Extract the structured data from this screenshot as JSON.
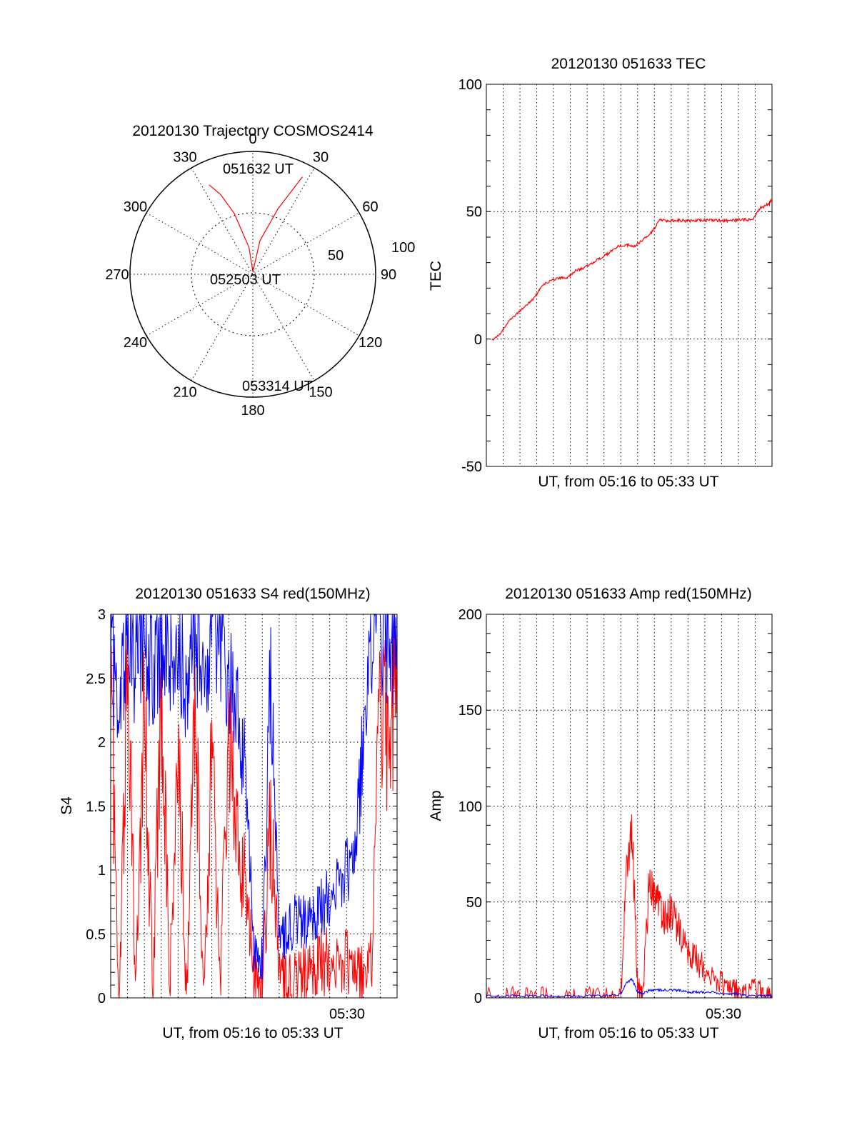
{
  "colors": {
    "red": "#ff0000",
    "blue": "#0000ff",
    "axis": "#000000"
  },
  "polar": {
    "title": "20120130 Trajectory COSMOS2414",
    "type": "polar",
    "azimuth_labels": [
      "0",
      "30",
      "60",
      "90",
      "120",
      "150",
      "180",
      "210",
      "240",
      "270",
      "300",
      "330"
    ],
    "radius_labels": [
      "50",
      "100"
    ],
    "radial_max": 100,
    "marker_start": "051632 UT",
    "marker_center": "052503 UT",
    "marker_end": "053314 UT"
  },
  "tec": {
    "title": "20120130 051633 TEC",
    "xlabel": "UT, from 05:16 to 05:33 UT",
    "ylabel": "TEC",
    "ytick_labels": [
      "100",
      "50",
      "0",
      "-50"
    ],
    "xtick_labels": []
  },
  "s4": {
    "title": "20120130 051633 S4 red(150MHz)",
    "xlabel": "UT, from 05:16 to 05:33 UT",
    "ylabel": "S4",
    "ytick_labels": [
      "3",
      "2.5",
      "2",
      "1.5",
      "1",
      "0.5",
      "0"
    ],
    "xtick_labels": [
      "05:30"
    ]
  },
  "amp": {
    "title": "20120130 051633 Amp red(150MHz)",
    "xlabel": "UT, from 05:16 to 05:33 UT",
    "ylabel": "Amp",
    "ytick_labels": [
      "200",
      "150",
      "100",
      "50",
      "0"
    ],
    "xtick_labels": [
      "05:30"
    ]
  },
  "chart_data": [
    {
      "type": "line",
      "chart": "polar-trajectory",
      "title": "20120130 Trajectory COSMOS2414",
      "series": [
        {
          "az": [
            334,
            338,
            343,
            352,
            2,
            12,
            21,
            27
          ],
          "r": [
            81,
            70,
            52,
            22,
            2,
            28,
            57,
            89
          ]
        }
      ]
    },
    {
      "type": "line",
      "chart": "tec",
      "title": "20120130 051633 TEC",
      "xlabel": "UT, from 05:16 to 05:33 UT",
      "ylabel": "TEC",
      "ylim": [
        -50,
        100
      ],
      "xlim": [
        "05:16",
        "05:33"
      ],
      "series": [
        {
          "x": [
            "05:16:20",
            "05:16:50",
            "05:17:20",
            "05:17:50",
            "05:18:20",
            "05:18:50",
            "05:19:20",
            "05:19:50",
            "05:20:20",
            "05:20:50",
            "05:21:20",
            "05:21:50",
            "05:22:20",
            "05:22:50",
            "05:23:20",
            "05:23:50",
            "05:24:20",
            "05:24:50",
            "05:25:20",
            "05:25:50",
            "05:26:20",
            "05:26:50",
            "05:27:20",
            "05:27:50",
            "05:28:20",
            "05:28:50",
            "05:29:20",
            "05:29:50",
            "05:30:20",
            "05:30:50",
            "05:31:20",
            "05:31:50",
            "05:32:20",
            "05:32:50",
            "05:33:00"
          ],
          "y": [
            -0.5,
            2,
            7,
            10,
            13,
            16,
            21,
            23,
            24,
            24,
            27,
            28,
            30,
            32,
            34,
            36.5,
            37,
            36.5,
            39,
            42,
            46.5,
            46.5,
            46.5,
            46.5,
            46.5,
            46.6,
            46.6,
            46.5,
            46.5,
            46.6,
            46.8,
            47,
            51.5,
            53,
            55
          ]
        }
      ]
    },
    {
      "type": "line",
      "chart": "s4",
      "title": "20120130 051633 S4 red(150MHz)",
      "xlabel": "UT, from 05:16 to 05:33 UT",
      "ylabel": "S4",
      "ylim": [
        0,
        3
      ],
      "xlim": [
        "05:16",
        "05:33"
      ],
      "series": [
        {
          "color": "red",
          "x": [
            "05:16:00",
            "05:16:30",
            "05:17:00",
            "05:17:30",
            "05:18:00",
            "05:18:30",
            "05:19:00",
            "05:19:30",
            "05:20:00",
            "05:20:30",
            "05:21:00",
            "05:21:30",
            "05:22:00",
            "05:22:30",
            "05:23:00",
            "05:23:30",
            "05:24:00",
            "05:24:30",
            "05:25:00",
            "05:25:30",
            "05:26:00",
            "05:26:30",
            "05:27:00",
            "05:27:30",
            "05:28:00",
            "05:28:30",
            "05:29:00",
            "05:29:30",
            "05:30:00",
            "05:30:30",
            "05:31:00",
            "05:31:30",
            "05:32:00",
            "05:32:30",
            "05:33:00"
          ],
          "y": [
            2.4,
            0.05,
            2.6,
            0.05,
            2.2,
            0.05,
            2.5,
            0.05,
            2.0,
            0.05,
            2.3,
            0.05,
            1.9,
            0.05,
            2.1,
            1.2,
            0.9,
            0.2,
            0.15,
            1.4,
            0.15,
            0.1,
            0.12,
            0.2,
            0.25,
            0.28,
            0.3,
            0.25,
            0.3,
            0.2,
            0.15,
            0.3,
            2.4,
            1.9,
            2.6
          ]
        },
        {
          "color": "blue",
          "x": [
            "05:16:00",
            "05:16:30",
            "05:17:00",
            "05:17:30",
            "05:18:00",
            "05:18:30",
            "05:19:00",
            "05:19:30",
            "05:20:00",
            "05:20:30",
            "05:21:00",
            "05:21:30",
            "05:22:00",
            "05:22:30",
            "05:23:00",
            "05:23:30",
            "05:24:00",
            "05:24:30",
            "05:25:00",
            "05:25:30",
            "05:26:00",
            "05:26:30",
            "05:27:00",
            "05:27:30",
            "05:28:00",
            "05:28:30",
            "05:29:00",
            "05:29:30",
            "05:30:00",
            "05:30:30",
            "05:31:00",
            "05:31:30",
            "05:32:00",
            "05:32:30",
            "05:33:00"
          ],
          "y": [
            2.7,
            2.4,
            2.9,
            2.6,
            2.8,
            2.5,
            2.9,
            2.6,
            2.7,
            2.5,
            2.8,
            2.6,
            2.9,
            2.7,
            2.5,
            2.2,
            1.8,
            0.4,
            0.3,
            2.6,
            0.4,
            0.5,
            0.6,
            0.6,
            0.65,
            0.7,
            0.8,
            0.9,
            1.0,
            1.1,
            2.0,
            2.8,
            2.9,
            2.7,
            2.8
          ]
        }
      ]
    },
    {
      "type": "line",
      "chart": "amp",
      "title": "20120130 051633 Amp red(150MHz)",
      "xlabel": "UT, from 05:16 to 05:33 UT",
      "ylabel": "Amp",
      "ylim": [
        0,
        200
      ],
      "xlim": [
        "05:16",
        "05:33"
      ],
      "series": [
        {
          "color": "red",
          "x": [
            "05:16:00",
            "05:17:00",
            "05:18:00",
            "05:19:00",
            "05:20:00",
            "05:21:00",
            "05:22:00",
            "05:23:00",
            "05:24:00",
            "05:24:20",
            "05:24:40",
            "05:25:00",
            "05:25:20",
            "05:25:40",
            "05:26:00",
            "05:26:20",
            "05:26:40",
            "05:27:00",
            "05:27:30",
            "05:28:00",
            "05:28:30",
            "05:29:00",
            "05:29:30",
            "05:30:00",
            "05:30:30",
            "05:31:00",
            "05:31:30",
            "05:32:00",
            "05:32:30",
            "05:33:00"
          ],
          "y": [
            0,
            0,
            0,
            0,
            0,
            0,
            0,
            0,
            0,
            70,
            90,
            5,
            2,
            60,
            55,
            45,
            40,
            45,
            35,
            25,
            20,
            15,
            10,
            8,
            5,
            3,
            2,
            6,
            1,
            0
          ]
        },
        {
          "color": "blue",
          "x": [
            "05:16:00",
            "05:17:00",
            "05:18:00",
            "05:19:00",
            "05:20:00",
            "05:21:00",
            "05:22:00",
            "05:23:00",
            "05:24:00",
            "05:24:20",
            "05:24:40",
            "05:25:00",
            "05:25:20",
            "05:25:40",
            "05:26:00",
            "05:26:30",
            "05:27:00",
            "05:27:30",
            "05:28:00",
            "05:28:30",
            "05:29:00",
            "05:29:30",
            "05:30:00",
            "05:30:30",
            "05:31:00",
            "05:31:30",
            "05:32:00",
            "05:32:30",
            "05:33:00"
          ],
          "y": [
            1,
            1,
            1,
            1,
            1,
            1,
            1,
            1,
            2,
            8,
            10,
            3,
            2,
            4,
            4,
            4,
            4,
            4,
            3,
            3,
            3,
            3,
            2,
            2,
            2,
            1,
            1,
            1,
            1
          ]
        }
      ]
    }
  ]
}
